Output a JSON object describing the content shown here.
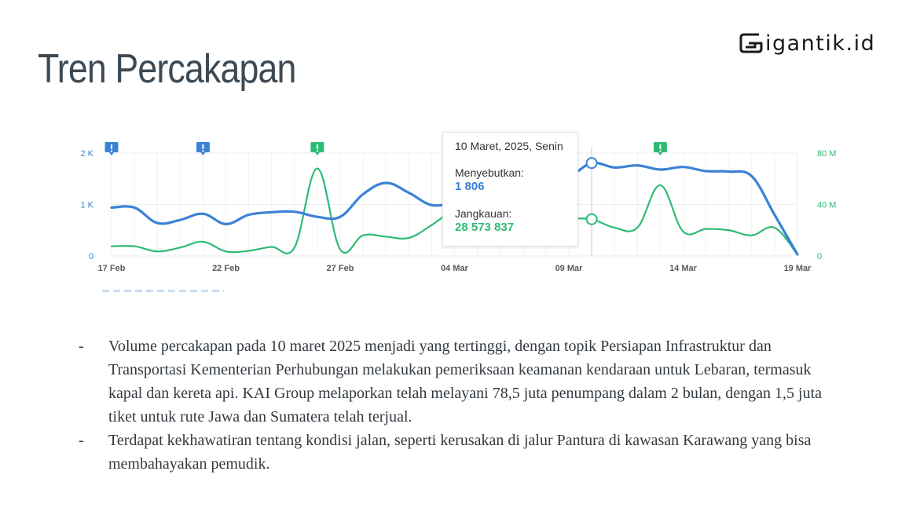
{
  "title": "Tren Percakapan",
  "brand": {
    "text": "igantik.id"
  },
  "tooltip": {
    "date": "10 Maret, 2025, Senin",
    "series1_label": "Menyebutkan:",
    "series1_value": "1 806",
    "series2_label": "Jangkauan:",
    "series2_value": "28 573 837"
  },
  "bullets": [
    "Volume percakapan pada 10 maret 2025 menjadi yang tertinggi, dengan topik Persiapan Infrastruktur dan Transportasi Kementerian Perhubungan melakukan pemeriksaan keamanan kendaraan untuk Lebaran, termasuk kapal dan kereta api. KAI Group melaporkan telah melayani 78,5 juta penumpang dalam 2 bulan, dengan 1,5 juta tiket untuk rute Jawa dan Sumatera telah terjual.",
    "Terdapat kekhawatiran tentang kondisi jalan, seperti kerusakan di jalur Pantura di kawasan Karawang yang bisa membahayakan pemudik."
  ],
  "bullet_marker": "-",
  "chart_data": {
    "type": "line",
    "x": [
      "17 Feb",
      "18 Feb",
      "19 Feb",
      "20 Feb",
      "21 Feb",
      "22 Feb",
      "23 Feb",
      "24 Feb",
      "25 Feb",
      "26 Feb",
      "27 Feb",
      "28 Feb",
      "01 Mar",
      "02 Mar",
      "03 Mar",
      "04 Mar",
      "05 Mar",
      "06 Mar",
      "07 Mar",
      "08 Mar",
      "09 Mar",
      "10 Mar",
      "11 Mar",
      "12 Mar",
      "13 Mar",
      "14 Mar",
      "15 Mar",
      "16 Mar",
      "17 Mar",
      "18 Mar",
      "19 Mar"
    ],
    "x_tick_labels": [
      "17 Feb",
      "22 Feb",
      "27 Feb",
      "04 Mar",
      "09 Mar",
      "14 Mar",
      "19 Mar"
    ],
    "y_left_ticks": [
      "0",
      "1 K",
      "2 K"
    ],
    "y_right_ticks": [
      "0",
      "40 M",
      "80 M"
    ],
    "ylim_left": [
      0,
      2000
    ],
    "ylim_right": [
      0,
      80000000
    ],
    "grid": true,
    "series": [
      {
        "name": "Menyebutkan",
        "axis": "left",
        "color": "#3b82d6",
        "values": [
          940,
          940,
          640,
          700,
          820,
          620,
          800,
          850,
          860,
          760,
          760,
          1200,
          1420,
          1230,
          990,
          1050,
          1200,
          1350,
          1500,
          1600,
          1550,
          1806,
          1720,
          1760,
          1680,
          1730,
          1650,
          1640,
          1550,
          800,
          30
        ]
      },
      {
        "name": "Jangkauan",
        "axis": "right",
        "color": "#2dbb74",
        "values": [
          7500,
          7500,
          3500,
          6500,
          11000,
          3500,
          4000,
          7000,
          6500,
          68000,
          5000,
          16000,
          15000,
          14000,
          24000,
          36000,
          40000,
          35000,
          33000,
          30000,
          29000,
          28573,
          22000,
          22000,
          55000,
          19000,
          21000,
          20000,
          16000,
          22000,
          1000
        ],
        "values_unit": "thousands"
      }
    ],
    "annotation_markers": [
      {
        "x": "17 Feb",
        "color": "#3b82d6"
      },
      {
        "x": "21 Feb",
        "color": "#3b82d6"
      },
      {
        "x": "26 Feb",
        "color": "#2dbb74"
      },
      {
        "x": "13 Mar",
        "color": "#2dbb74"
      }
    ],
    "highlight_x": "10 Mar"
  },
  "colors": {
    "blue": "#3b82d6",
    "green": "#2dbb74",
    "title": "#3d4a55"
  }
}
